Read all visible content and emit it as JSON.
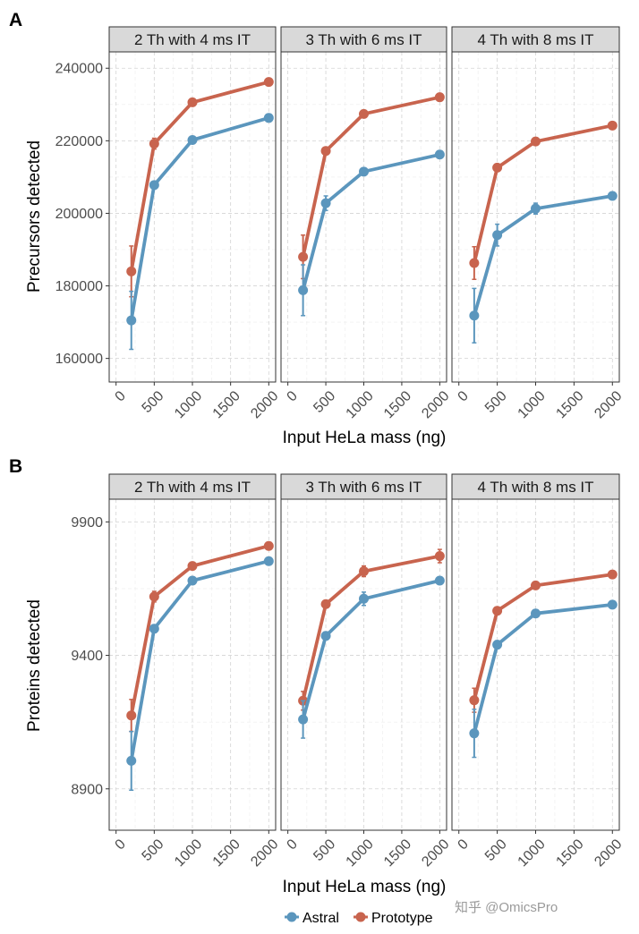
{
  "colors": {
    "astral": "#5b96bd",
    "prototype": "#c8644e",
    "strip_bg": "#d9d9d9",
    "grid": "#d4d4d4",
    "border": "#333333"
  },
  "facets": [
    "2 Th with 4 ms IT",
    "3 Th with 6 ms IT",
    "4 Th with 8 ms IT"
  ],
  "legend": {
    "items": [
      "Astral",
      "Prototype"
    ]
  },
  "watermark": "知乎 @OmicsPro",
  "chart_data": [
    {
      "type": "line",
      "panel_label": "A",
      "xlabel": "Input HeLa mass (ng)",
      "ylabel": "Precursors detected",
      "x": [
        200,
        500,
        1000,
        2000
      ],
      "xticks": [
        0,
        500,
        1000,
        1500,
        2000
      ],
      "xtick_labels": [
        "0",
        "500",
        "1000",
        "1500",
        "2000"
      ],
      "xlim": [
        -90,
        2090
      ],
      "yticks": [
        160000,
        180000,
        200000,
        220000,
        240000
      ],
      "ytick_labels": [
        "160000",
        "180000",
        "200000",
        "220000",
        "240000"
      ],
      "ylim": [
        153500,
        244500
      ],
      "facets": [
        {
          "title": "2 Th with 4 ms IT",
          "series": [
            {
              "name": "Prototype",
              "values": [
                184000,
                219200,
                230600,
                236200
              ],
              "err": [
                7000,
                1500,
                800,
                600
              ]
            },
            {
              "name": "Astral",
              "values": [
                170500,
                207800,
                220200,
                226300
              ],
              "err": [
                8000,
                1000,
                600,
                600
              ]
            }
          ]
        },
        {
          "title": "3 Th with 6 ms IT",
          "series": [
            {
              "name": "Prototype",
              "values": [
                188000,
                217200,
                227400,
                232000
              ],
              "err": [
                6000,
                1000,
                600,
                600
              ]
            },
            {
              "name": "Astral",
              "values": [
                178800,
                202800,
                211500,
                216200
              ],
              "err": [
                7000,
                2000,
                800,
                600
              ]
            }
          ]
        },
        {
          "title": "4 Th with 8 ms IT",
          "series": [
            {
              "name": "Prototype",
              "values": [
                186300,
                212600,
                219800,
                224200
              ],
              "err": [
                4500,
                800,
                600,
                600
              ]
            },
            {
              "name": "Astral",
              "values": [
                171800,
                194000,
                201300,
                204800
              ],
              "err": [
                7500,
                3000,
                1500,
                600
              ]
            }
          ]
        }
      ]
    },
    {
      "type": "line",
      "panel_label": "B",
      "xlabel": "Input HeLa mass (ng)",
      "ylabel": "Proteins detected",
      "x": [
        200,
        500,
        1000,
        2000
      ],
      "xticks": [
        0,
        500,
        1000,
        1500,
        2000
      ],
      "xtick_labels": [
        "0",
        "500",
        "1000",
        "1500",
        "2000"
      ],
      "xlim": [
        -90,
        2090
      ],
      "yticks": [
        8900,
        9400,
        9900
      ],
      "ytick_labels": [
        "8900",
        "9400",
        "9900"
      ],
      "ylim": [
        8745,
        9985
      ],
      "facets": [
        {
          "title": "2 Th with 4 ms IT",
          "series": [
            {
              "name": "Prototype",
              "values": [
                9175,
                9620,
                9735,
                9810
              ],
              "err": [
                60,
                20,
                12,
                8
              ]
            },
            {
              "name": "Astral",
              "values": [
                9005,
                9500,
                9680,
                9753
              ],
              "err": [
                110,
                15,
                10,
                8
              ]
            }
          ]
        },
        {
          "title": "3 Th with 6 ms IT",
          "series": [
            {
              "name": "Prototype",
              "values": [
                9230,
                9592,
                9715,
                9772
              ],
              "err": [
                35,
                12,
                20,
                25
              ]
            },
            {
              "name": "Astral",
              "values": [
                9160,
                9473,
                9612,
                9680
              ],
              "err": [
                70,
                15,
                25,
                12
              ]
            }
          ]
        },
        {
          "title": "4 Th with 8 ms IT",
          "series": [
            {
              "name": "Prototype",
              "values": [
                9232,
                9567,
                9662,
                9703
              ],
              "err": [
                45,
                12,
                10,
                8
              ]
            },
            {
              "name": "Astral",
              "values": [
                9108,
                9440,
                9557,
                9590
              ],
              "err": [
                90,
                15,
                10,
                8
              ]
            }
          ]
        }
      ]
    }
  ]
}
